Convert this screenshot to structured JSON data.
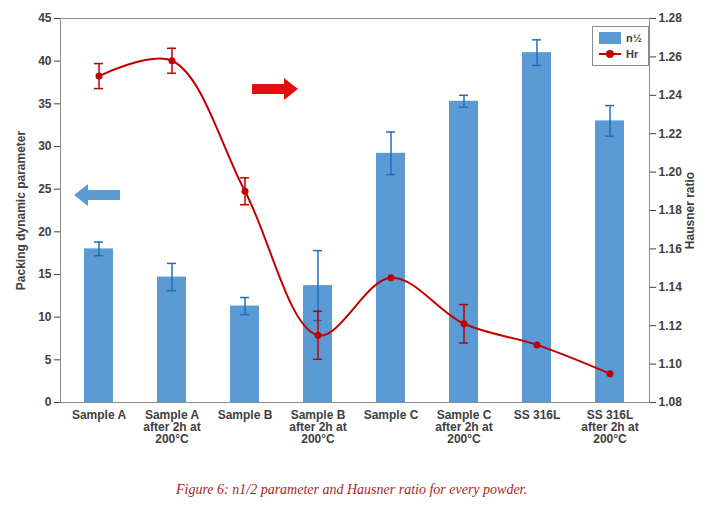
{
  "chart_data": {
    "type": "bar",
    "caption": "Figure 6: n1/2 parameter and Hausner ratio for every powder.",
    "categories": [
      "Sample A",
      "Sample A\nafter 2h at\n200°C",
      "Sample B",
      "Sample B\nafter 2h at\n200°C",
      "Sample C",
      "Sample C\nafter 2h at\n200°C",
      "SS 316L",
      "SS 316L\nafter 2h at\n200°C"
    ],
    "ylabel": "Packing dynamic parameter",
    "y2label": "Hausner ratio",
    "ylim": [
      0,
      45
    ],
    "yticks": [
      0,
      5,
      10,
      15,
      20,
      25,
      30,
      35,
      40,
      45
    ],
    "y2lim": [
      1.08,
      1.28
    ],
    "y2ticks": [
      1.08,
      {
        "value": 1.1,
        "label": "1.10"
      },
      1.12,
      1.14,
      1.16,
      1.18,
      {
        "value": 1.2,
        "label": "1.20"
      },
      1.22,
      1.24,
      1.26,
      1.28
    ],
    "legend": "top-right",
    "series": [
      {
        "name": "n½",
        "type": "bar",
        "color": "#5b9bd5",
        "values": [
          18.0,
          14.7,
          11.3,
          13.7,
          29.2,
          35.3,
          41.0,
          33.0
        ],
        "errors": [
          0.8,
          1.6,
          1.0,
          4.1,
          2.5,
          0.7,
          1.5,
          1.8
        ]
      },
      {
        "name": "Hr",
        "type": "line",
        "axis": "y2",
        "color": "#c00000",
        "marker": "circle",
        "line_style": "smooth",
        "values": [
          1.25,
          1.258,
          1.19,
          1.115,
          1.145,
          1.121,
          1.11,
          1.095
        ],
        "errors": [
          0.0065,
          0.0065,
          0.007,
          0.0125,
          null,
          0.01,
          null,
          null
        ]
      }
    ]
  }
}
